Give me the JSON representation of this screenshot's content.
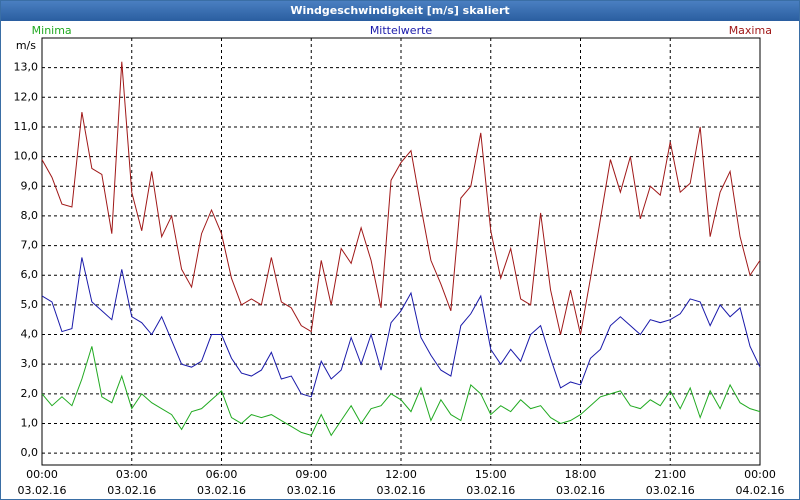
{
  "chart_data": {
    "type": "line",
    "title": "Windgeschwindigkeit [m/s] skaliert",
    "y_label": "m/s",
    "x": [
      0,
      20,
      40,
      60,
      80,
      100,
      120,
      140,
      160,
      180,
      200,
      220,
      240,
      260,
      280,
      300,
      320,
      340,
      360,
      380,
      400,
      420,
      440,
      460,
      480,
      500,
      520,
      540,
      560,
      580,
      600,
      620,
      640,
      660,
      680,
      700,
      720,
      740,
      760,
      780,
      800,
      820,
      840,
      860,
      880,
      900,
      920,
      940,
      960,
      980,
      1000,
      1020,
      1040,
      1060,
      1080,
      1100,
      1120,
      1140,
      1160,
      1180,
      1200,
      1220,
      1240,
      1260,
      1280,
      1300,
      1320,
      1340,
      1360,
      1380,
      1400,
      1420,
      1440
    ],
    "xlim": [
      0,
      1440
    ],
    "xticks": [
      {
        "value": 0,
        "label": "00:00 03.02.16"
      },
      {
        "value": 180,
        "label": "03:00 03.02.16"
      },
      {
        "value": 360,
        "label": "06:00 03.02.16"
      },
      {
        "value": 540,
        "label": "09:00 03.02.16"
      },
      {
        "value": 720,
        "label": "12:00 03.02.16"
      },
      {
        "value": 900,
        "label": "15:00 03.02.16"
      },
      {
        "value": 1080,
        "label": "18:00 03.02.16"
      },
      {
        "value": 1260,
        "label": "21:00 03.02.16"
      },
      {
        "value": 1440,
        "label": "00:00 04.02.16"
      }
    ],
    "ylim": [
      -0.4,
      14.0
    ],
    "yticks": [
      {
        "value": 0,
        "label": "0,0"
      },
      {
        "value": 1,
        "label": "1,0"
      },
      {
        "value": 2,
        "label": "2,0"
      },
      {
        "value": 3,
        "label": "3,0"
      },
      {
        "value": 4,
        "label": "4,0"
      },
      {
        "value": 5,
        "label": "5,0"
      },
      {
        "value": 6,
        "label": "6,0"
      },
      {
        "value": 7,
        "label": "7,0"
      },
      {
        "value": 8,
        "label": "8,0"
      },
      {
        "value": 9,
        "label": "9,0"
      },
      {
        "value": 10,
        "label": "10,0"
      },
      {
        "value": 11,
        "label": "11,0"
      },
      {
        "value": 12,
        "label": "12,0"
      },
      {
        "value": 13,
        "label": "13,0"
      }
    ],
    "grid": true,
    "legend": "top",
    "series": [
      {
        "name": "Minima",
        "color": "#22aa22",
        "values": [
          2.0,
          1.6,
          1.9,
          1.6,
          2.5,
          3.6,
          1.9,
          1.7,
          2.6,
          1.5,
          2.0,
          1.7,
          1.5,
          1.3,
          0.8,
          1.4,
          1.5,
          1.8,
          2.1,
          1.2,
          1.0,
          1.3,
          1.2,
          1.3,
          1.1,
          0.9,
          0.7,
          0.6,
          1.3,
          0.6,
          1.1,
          1.6,
          1.0,
          1.5,
          1.6,
          2.0,
          1.8,
          1.4,
          2.2,
          1.1,
          1.8,
          1.3,
          1.1,
          2.3,
          2.0,
          1.3,
          1.6,
          1.4,
          1.8,
          1.5,
          1.6,
          1.2,
          1.0,
          1.1,
          1.3,
          1.6,
          1.9,
          2.0,
          2.1,
          1.6,
          1.5,
          1.8,
          1.6,
          2.1,
          1.5,
          2.2,
          1.2,
          2.1,
          1.5,
          2.3,
          1.7,
          1.5,
          1.4
        ]
      },
      {
        "name": "Mittelwerte",
        "color": "#1a1aaa",
        "values": [
          5.3,
          5.1,
          4.1,
          4.2,
          6.6,
          5.1,
          4.8,
          4.5,
          6.2,
          4.6,
          4.4,
          4.0,
          4.6,
          3.8,
          3.0,
          2.9,
          3.1,
          4.0,
          4.0,
          3.2,
          2.7,
          2.6,
          2.8,
          3.4,
          2.5,
          2.6,
          2.0,
          1.9,
          3.1,
          2.5,
          2.8,
          3.9,
          3.0,
          4.0,
          2.8,
          4.4,
          4.8,
          5.4,
          3.9,
          3.3,
          2.8,
          2.6,
          4.3,
          4.7,
          5.3,
          3.5,
          3.0,
          3.5,
          3.1,
          4.0,
          4.3,
          3.2,
          2.2,
          2.4,
          2.3,
          3.2,
          3.5,
          4.3,
          4.6,
          4.3,
          4.0,
          4.5,
          4.4,
          4.5,
          4.7,
          5.2,
          5.1,
          4.3,
          5.0,
          4.6,
          4.9,
          3.6,
          2.9
        ]
      },
      {
        "name": "Maxima",
        "color": "#a01818",
        "values": [
          9.9,
          9.3,
          8.4,
          8.3,
          11.5,
          9.6,
          9.4,
          7.4,
          13.2,
          8.8,
          7.5,
          9.5,
          7.3,
          8.0,
          6.2,
          5.6,
          7.4,
          8.2,
          7.4,
          5.9,
          5.0,
          5.2,
          5.0,
          6.6,
          5.1,
          4.9,
          4.3,
          4.1,
          6.5,
          5.0,
          6.9,
          6.4,
          7.6,
          6.5,
          4.9,
          9.2,
          9.8,
          10.2,
          8.3,
          6.5,
          5.7,
          4.8,
          8.6,
          9.0,
          10.8,
          7.5,
          5.9,
          6.9,
          5.2,
          5.0,
          8.1,
          5.5,
          4.0,
          5.5,
          4.0,
          5.9,
          7.9,
          9.9,
          8.8,
          10.0,
          7.9,
          9.0,
          8.7,
          10.5,
          8.8,
          9.1,
          11.0,
          7.3,
          8.8,
          9.5,
          7.3,
          6.0,
          6.5
        ]
      }
    ]
  }
}
